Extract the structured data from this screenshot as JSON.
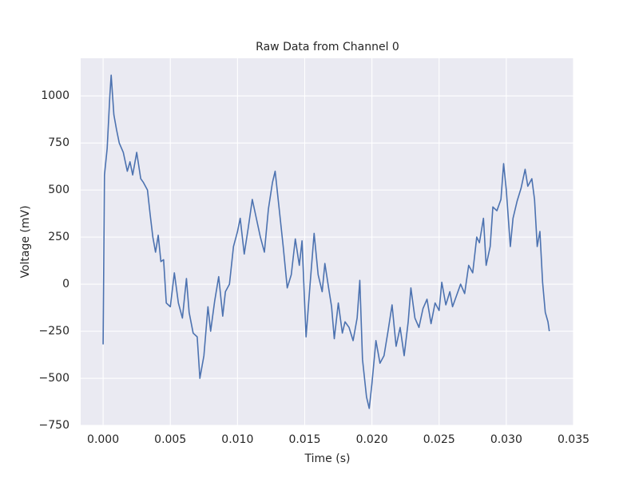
{
  "chart_data": {
    "type": "line",
    "title": "Raw Data from Channel 0",
    "x_label": "Time (s)",
    "y_label": "Voltage (mV)",
    "color": "#4c72b0",
    "grid": true,
    "background": "#eaeaf2",
    "x": [
      0,
      0.0001,
      0.0003,
      0.0005,
      0.0006,
      0.0008,
      0.001,
      0.0012,
      0.0015,
      0.0018,
      0.002,
      0.0022,
      0.0025,
      0.0028,
      0.003,
      0.0033,
      0.0035,
      0.0037,
      0.0039,
      0.0041,
      0.0043,
      0.0045,
      0.0047,
      0.005,
      0.0053,
      0.0056,
      0.0059,
      0.0062,
      0.0064,
      0.0067,
      0.007,
      0.0072,
      0.0075,
      0.0078,
      0.008,
      0.0083,
      0.0086,
      0.0089,
      0.0091,
      0.0094,
      0.0097,
      0.01,
      0.0102,
      0.0105,
      0.0108,
      0.0111,
      0.0114,
      0.0117,
      0.012,
      0.0123,
      0.0126,
      0.0128,
      0.0131,
      0.0134,
      0.0137,
      0.014,
      0.0143,
      0.0146,
      0.0148,
      0.0151,
      0.0154,
      0.0157,
      0.016,
      0.0163,
      0.0165,
      0.0168,
      0.017,
      0.0172,
      0.0175,
      0.0178,
      0.018,
      0.0183,
      0.0186,
      0.0189,
      0.0191,
      0.0193,
      0.0196,
      0.0198,
      0.02,
      0.0203,
      0.0206,
      0.0209,
      0.0212,
      0.0215,
      0.0218,
      0.0221,
      0.0224,
      0.0227,
      0.0229,
      0.0232,
      0.0235,
      0.0238,
      0.0241,
      0.0244,
      0.0247,
      0.025,
      0.0252,
      0.0255,
      0.0258,
      0.026,
      0.0263,
      0.0266,
      0.0269,
      0.0272,
      0.0275,
      0.0278,
      0.028,
      0.0283,
      0.0285,
      0.0288,
      0.029,
      0.0293,
      0.0296,
      0.0298,
      0.03,
      0.0303,
      0.0305,
      0.0308,
      0.0311,
      0.0314,
      0.0316,
      0.0319,
      0.0321,
      0.0323,
      0.0325,
      0.0327,
      0.0329,
      0.0331,
      0.0332
    ],
    "values": [
      -320,
      580,
      720,
      1000,
      1110,
      900,
      820,
      750,
      700,
      600,
      650,
      580,
      700,
      560,
      540,
      500,
      370,
      250,
      170,
      260,
      120,
      130,
      -100,
      -120,
      60,
      -100,
      -180,
      30,
      -150,
      -260,
      -280,
      -500,
      -380,
      -120,
      -250,
      -90,
      40,
      -170,
      -40,
      0,
      200,
      280,
      350,
      160,
      300,
      450,
      350,
      250,
      170,
      400,
      540,
      600,
      400,
      200,
      -20,
      50,
      240,
      100,
      230,
      -280,
      0,
      270,
      50,
      -40,
      110,
      -30,
      -120,
      -290,
      -100,
      -260,
      -200,
      -230,
      -300,
      -180,
      20,
      -400,
      -600,
      -660,
      -530,
      -300,
      -420,
      -380,
      -250,
      -110,
      -330,
      -230,
      -380,
      -200,
      -20,
      -180,
      -230,
      -130,
      -80,
      -210,
      -100,
      -140,
      10,
      -110,
      -40,
      -120,
      -60,
      0,
      -50,
      100,
      60,
      250,
      220,
      350,
      100,
      200,
      410,
      390,
      450,
      640,
      500,
      200,
      350,
      440,
      510,
      610,
      520,
      560,
      450,
      200,
      280,
      10,
      -150,
      -200,
      -250
    ],
    "xlim": [
      -0.00167,
      0.035
    ],
    "ylim": [
      -750,
      1200
    ],
    "xticks": [
      {
        "value": 0,
        "label": "0.000"
      },
      {
        "value": 0.005,
        "label": "0.005"
      },
      {
        "value": 0.01,
        "label": "0.010"
      },
      {
        "value": 0.015,
        "label": "0.015"
      },
      {
        "value": 0.02,
        "label": "0.020"
      },
      {
        "value": 0.025,
        "label": "0.025"
      },
      {
        "value": 0.03,
        "label": "0.030"
      },
      {
        "value": 0.035,
        "label": "0.035"
      }
    ],
    "yticks": [
      {
        "value": -750,
        "label": "−750"
      },
      {
        "value": -500,
        "label": "−500"
      },
      {
        "value": -250,
        "label": "−250"
      },
      0,
      250,
      500,
      750,
      1000
    ]
  }
}
